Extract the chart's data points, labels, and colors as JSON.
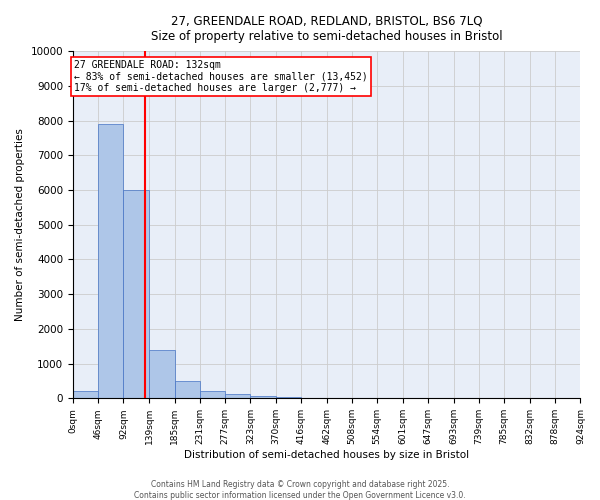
{
  "title_line1": "27, GREENDALE ROAD, REDLAND, BRISTOL, BS6 7LQ",
  "title_line2": "Size of property relative to semi-detached houses in Bristol",
  "xlabel": "Distribution of semi-detached houses by size in Bristol",
  "ylabel": "Number of semi-detached properties",
  "property_size": 132,
  "annotation_line1": "27 GREENDALE ROAD: 132sqm",
  "annotation_line2": "← 83% of semi-detached houses are smaller (13,452)",
  "annotation_line3": "17% of semi-detached houses are larger (2,777) →",
  "bin_edges": [
    0,
    46,
    92,
    139,
    185,
    231,
    277,
    323,
    370,
    416,
    462,
    508,
    554,
    601,
    647,
    693,
    739,
    785,
    832,
    878,
    924
  ],
  "bin_labels": [
    "0sqm",
    "46sqm",
    "92sqm",
    "139sqm",
    "185sqm",
    "231sqm",
    "277sqm",
    "323sqm",
    "370sqm",
    "416sqm",
    "462sqm",
    "508sqm",
    "554sqm",
    "601sqm",
    "647sqm",
    "693sqm",
    "739sqm",
    "785sqm",
    "832sqm",
    "878sqm",
    "924sqm"
  ],
  "bar_heights": [
    200,
    7900,
    6000,
    1400,
    500,
    200,
    130,
    80,
    30,
    10,
    5,
    3,
    2,
    1,
    1,
    0,
    0,
    0,
    0,
    0
  ],
  "bar_color": "#aec6e8",
  "bar_edge_color": "#4472c4",
  "grid_color": "#cccccc",
  "background_color": "#e8eef8",
  "vline_color": "red",
  "vline_x": 132,
  "ylim": [
    0,
    10000
  ],
  "yticks": [
    0,
    1000,
    2000,
    3000,
    4000,
    5000,
    6000,
    7000,
    8000,
    9000,
    10000
  ],
  "annotation_box_color": "white",
  "annotation_box_edgecolor": "red",
  "footer_line1": "Contains HM Land Registry data © Crown copyright and database right 2025.",
  "footer_line2": "Contains public sector information licensed under the Open Government Licence v3.0."
}
